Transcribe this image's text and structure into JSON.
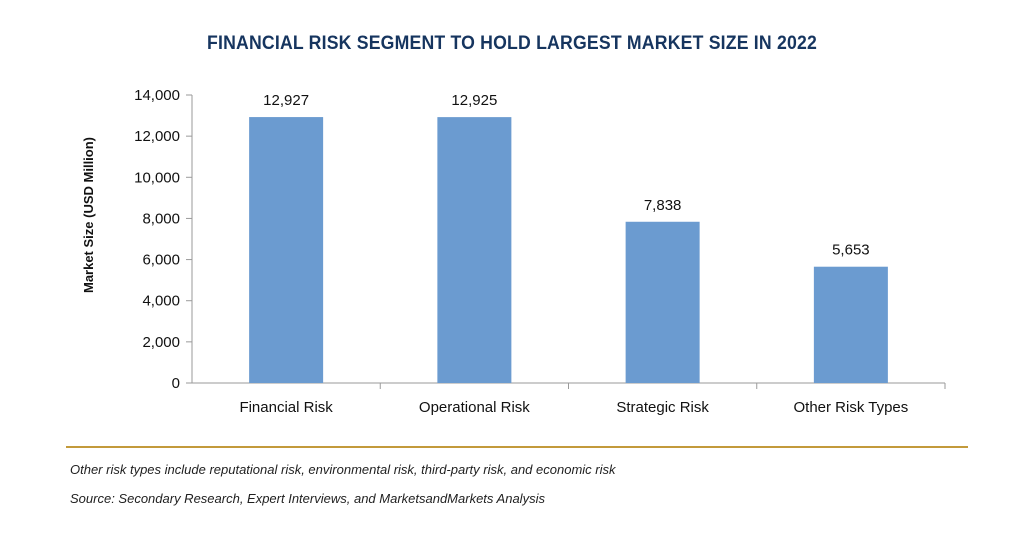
{
  "chart_data": {
    "type": "bar",
    "title": "FINANCIAL RISK SEGMENT TO HOLD LARGEST MARKET SIZE IN 2022",
    "xlabel": "",
    "ylabel": "Market Size (USD Million)",
    "categories": [
      "Financial Risk",
      "Operational Risk",
      "Strategic Risk",
      "Other Risk Types"
    ],
    "values": [
      12927,
      12925,
      7838,
      5653
    ],
    "data_labels": [
      "12,927",
      "12,925",
      "7,838",
      "5,653"
    ],
    "ylim": [
      0,
      14000
    ],
    "yticks": [
      0,
      2000,
      4000,
      6000,
      8000,
      10000,
      12000,
      14000
    ],
    "ytick_labels": [
      "0",
      "2,000",
      "4,000",
      "6,000",
      "8,000",
      "10,000",
      "12,000",
      "14,000"
    ],
    "grid": false,
    "bar_color": "#6b9bd0"
  },
  "notes": {
    "footnote": "Other risk types include reputational risk, environmental risk, third-party risk, and economic risk",
    "source": "Source: Secondary Research, Expert Interviews, and MarketsandMarkets Analysis"
  }
}
